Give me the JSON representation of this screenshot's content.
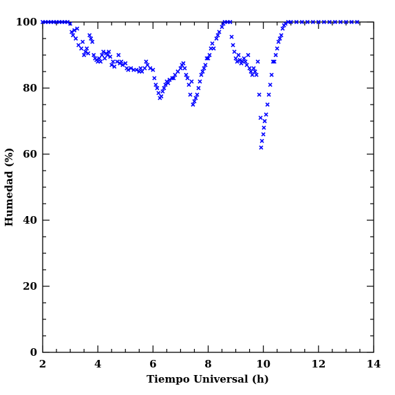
{
  "chart_data": {
    "type": "scatter",
    "xlabel": "Tiempo Universal (h)",
    "ylabel": "Humedad (%)",
    "color": "#0000ff",
    "marker": "x",
    "xlim": [
      2,
      14
    ],
    "ylim": [
      0,
      100
    ],
    "xticks": [
      2,
      4,
      6,
      8,
      10,
      12,
      14
    ],
    "yticks": [
      0,
      20,
      40,
      60,
      80,
      100
    ],
    "x": [
      2.0,
      2.1,
      2.2,
      2.3,
      2.4,
      2.5,
      2.6,
      2.7,
      2.8,
      2.9,
      3.0,
      3.05,
      3.1,
      3.15,
      3.2,
      3.25,
      3.3,
      3.4,
      3.45,
      3.5,
      3.55,
      3.6,
      3.65,
      3.7,
      3.75,
      3.8,
      3.85,
      3.9,
      3.95,
      4.0,
      4.05,
      4.1,
      4.15,
      4.2,
      4.25,
      4.3,
      4.35,
      4.4,
      4.45,
      4.5,
      4.55,
      4.6,
      4.7,
      4.75,
      4.8,
      4.85,
      4.9,
      5.0,
      5.05,
      5.1,
      5.2,
      5.3,
      5.4,
      5.5,
      5.55,
      5.6,
      5.7,
      5.75,
      5.8,
      5.9,
      6.0,
      6.05,
      6.1,
      6.15,
      6.2,
      6.25,
      6.3,
      6.35,
      6.4,
      6.45,
      6.5,
      6.55,
      6.6,
      6.7,
      6.75,
      6.8,
      6.9,
      7.0,
      7.05,
      7.1,
      7.15,
      7.2,
      7.25,
      7.3,
      7.35,
      7.4,
      7.45,
      7.5,
      7.55,
      7.6,
      7.65,
      7.7,
      7.75,
      7.8,
      7.85,
      7.9,
      7.95,
      8.0,
      8.05,
      8.1,
      8.15,
      8.2,
      8.3,
      8.35,
      8.4,
      8.5,
      8.55,
      8.6,
      8.7,
      8.8,
      8.85,
      8.9,
      8.95,
      9.0,
      9.05,
      9.1,
      9.15,
      9.2,
      9.25,
      9.3,
      9.35,
      9.4,
      9.45,
      9.5,
      9.55,
      9.6,
      9.65,
      9.7,
      9.75,
      9.8,
      9.85,
      9.9,
      9.92,
      9.95,
      10.0,
      10.02,
      10.05,
      10.1,
      10.15,
      10.2,
      10.25,
      10.3,
      10.35,
      10.4,
      10.45,
      10.5,
      10.55,
      10.6,
      10.65,
      10.7,
      10.75,
      10.8,
      10.9,
      11.0,
      11.2,
      11.4,
      11.6,
      11.8,
      12.0,
      12.2,
      12.4,
      12.6,
      12.8,
      13.0,
      13.2,
      13.4
    ],
    "values": [
      100,
      100,
      100,
      100,
      100,
      100,
      100,
      100,
      100,
      100,
      99.5,
      97,
      96,
      97.5,
      95,
      98,
      93,
      92,
      94,
      90,
      91,
      92,
      90.5,
      96,
      95,
      94,
      90,
      89,
      88.5,
      88,
      89,
      88,
      90,
      91,
      89,
      90.5,
      90,
      91,
      89.5,
      87,
      88,
      86.5,
      88,
      90,
      87.5,
      88,
      87,
      87.5,
      86,
      85.5,
      86,
      85.5,
      85.5,
      85,
      86,
      85,
      86,
      88,
      87,
      86,
      85.5,
      83,
      81,
      80,
      78.5,
      77,
      77.5,
      79,
      80,
      81,
      82,
      81.5,
      82.5,
      83,
      83,
      84,
      85,
      86,
      87,
      87.5,
      86,
      84,
      83,
      81,
      78,
      82,
      75,
      76,
      77,
      78,
      80,
      82,
      84,
      85,
      86,
      87,
      89,
      89,
      90,
      92,
      93.5,
      92,
      95,
      96,
      97,
      98.5,
      99.5,
      100,
      100,
      100,
      95.5,
      93,
      91,
      89,
      88,
      90,
      88.5,
      87.5,
      88,
      89,
      88,
      87,
      90,
      86,
      85,
      84,
      86,
      85,
      84,
      88,
      78,
      71,
      62,
      64,
      66,
      68,
      70,
      72,
      75,
      78,
      81,
      84,
      88,
      88,
      90,
      92,
      94,
      95,
      96,
      98,
      99,
      99.5,
      100,
      100,
      100,
      100,
      100,
      100,
      100,
      100,
      100,
      100,
      100,
      100,
      100,
      100
    ]
  }
}
